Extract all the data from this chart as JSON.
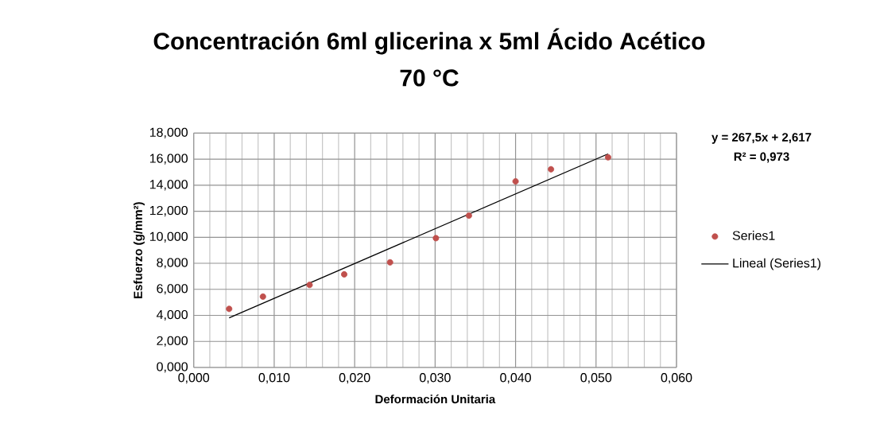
{
  "chart_data": {
    "type": "scatter",
    "title": "Concentración 6ml glicerina x 5ml Ácido Acético",
    "subtitle": "70 °C",
    "xlabel": "Deformación Unitaria",
    "ylabel": "Esfuerzo (g/mm²)",
    "annotations": [
      "y = 267,5x + 2,617",
      "R² = 0,973"
    ],
    "x": [
      0.0044,
      0.0086,
      0.0144,
      0.0187,
      0.0244,
      0.0301,
      0.0342,
      0.04,
      0.0444,
      0.0515
    ],
    "series": [
      {
        "name": "Series1",
        "color": "#c0504d",
        "marker": "circle",
        "values": [
          4.5,
          5.44,
          6.34,
          7.15,
          8.07,
          9.93,
          11.66,
          14.29,
          15.22,
          16.14
        ]
      },
      {
        "name": "Lineal (Series1)",
        "type": "line",
        "color": "#000000",
        "marker": "none",
        "x": [
          0.0044,
          0.0515
        ],
        "values": [
          3.81,
          16.4
        ]
      }
    ],
    "xlim": [
      0,
      0.06
    ],
    "ylim": [
      0,
      18
    ],
    "xticks": [
      {
        "value": 0,
        "label": "0,000"
      },
      {
        "value": 0.01,
        "label": "0,010"
      },
      {
        "value": 0.02,
        "label": "0,020"
      },
      {
        "value": 0.03,
        "label": "0,030"
      },
      {
        "value": 0.04,
        "label": "0,040"
      },
      {
        "value": 0.05,
        "label": "0,050"
      },
      {
        "value": 0.06,
        "label": "0,060"
      }
    ],
    "yticks": [
      {
        "value": 0,
        "label": "0,000"
      },
      {
        "value": 2,
        "label": "2,000"
      },
      {
        "value": 4,
        "label": "4,000"
      },
      {
        "value": 6,
        "label": "6,000"
      },
      {
        "value": 8,
        "label": "8,000"
      },
      {
        "value": 10,
        "label": "10,000"
      },
      {
        "value": 12,
        "label": "12,000"
      },
      {
        "value": 14,
        "label": "14,000"
      },
      {
        "value": 16,
        "label": "16,000"
      },
      {
        "value": 18,
        "label": "18,000"
      }
    ],
    "grid": true,
    "legend": "right"
  }
}
